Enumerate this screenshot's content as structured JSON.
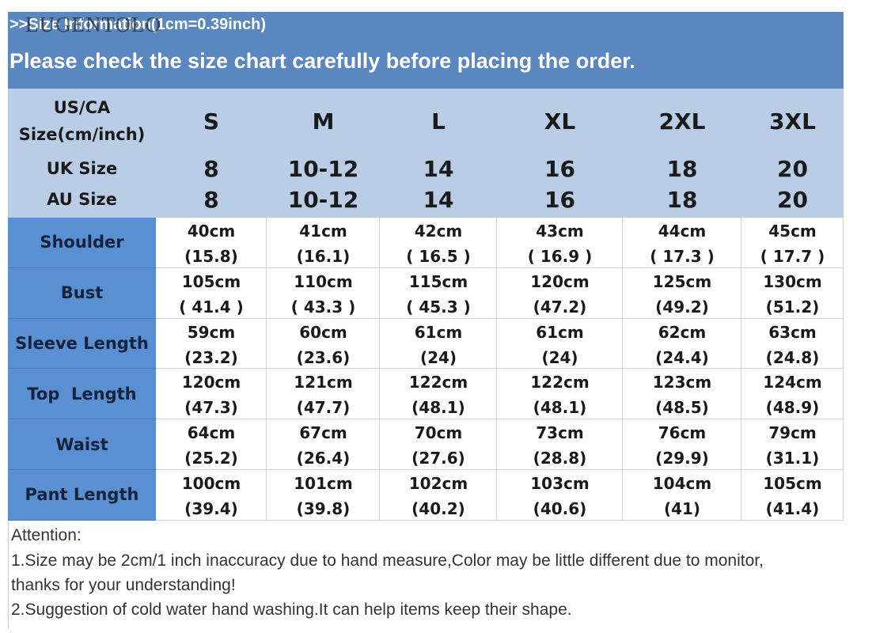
{
  "header": {
    "watermark": "LUGENTOLO",
    "info": ">>Size Information(1cm=0.39inch)",
    "notice": "Please check the size chart carefully before placing the order."
  },
  "table": {
    "size_label": "US/CA Size(cm/inch)",
    "sizes": [
      "S",
      "M",
      "L",
      "XL",
      "2XL",
      "3XL"
    ],
    "uk_label": "UK Size",
    "uk": [
      "8",
      "10-12",
      "14",
      "16",
      "18",
      "20"
    ],
    "au_label": "AU Size",
    "au": [
      "8",
      "10-12",
      "14",
      "16",
      "18",
      "20"
    ],
    "rows": [
      {
        "label": "Shoulder",
        "cm": [
          "40cm",
          "41cm",
          "42cm",
          "43cm",
          "44cm",
          "45cm"
        ],
        "inch": [
          "(15.8)",
          "(16.1)",
          "( 16.5 )",
          "( 16.9 )",
          "( 17.3 )",
          "( 17.7 )"
        ]
      },
      {
        "label": "Bust",
        "cm": [
          "105cm",
          "110cm",
          "115cm",
          "120cm",
          "125cm",
          "130cm"
        ],
        "inch": [
          "( 41.4 )",
          "( 43.3 )",
          "( 45.3 )",
          "(47.2)",
          "(49.2)",
          "(51.2)"
        ]
      },
      {
        "label": "Sleeve Length",
        "cm": [
          "59cm",
          "60cm",
          "61cm",
          "61cm",
          "62cm",
          "63cm"
        ],
        "inch": [
          "(23.2)",
          "(23.6)",
          "(24)",
          "(24)",
          "(24.4)",
          "(24.8)"
        ]
      },
      {
        "label": "Top  Length",
        "cm": [
          "120cm",
          "121cm",
          "122cm",
          "122cm",
          "123cm",
          "124cm"
        ],
        "inch": [
          "(47.3)",
          "(47.7)",
          "(48.1)",
          "(48.1)",
          "(48.5)",
          "(48.9)"
        ]
      },
      {
        "label": "Waist",
        "cm": [
          "64cm",
          "67cm",
          "70cm",
          "73cm",
          "76cm",
          "79cm"
        ],
        "inch": [
          "(25.2)",
          "(26.4)",
          "(27.6)",
          "(28.8)",
          "(29.9)",
          "(31.1)"
        ]
      },
      {
        "label": "Pant Length",
        "cm": [
          "100cm",
          "101cm",
          "102cm",
          "103cm",
          "104cm",
          "105cm"
        ],
        "inch": [
          "(39.4)",
          "(39.8)",
          "(40.2)",
          "(40.6)",
          "(41)",
          "(41.4)"
        ]
      }
    ]
  },
  "footer": {
    "title": "Attention:",
    "lines": [
      "1.Size may be 2cm/1 inch inaccuracy due to hand measure,Color may be little different due to monitor,",
      "thanks for your understanding!",
      "2.Suggestion of cold water hand washing.It can help items keep their shape."
    ]
  }
}
